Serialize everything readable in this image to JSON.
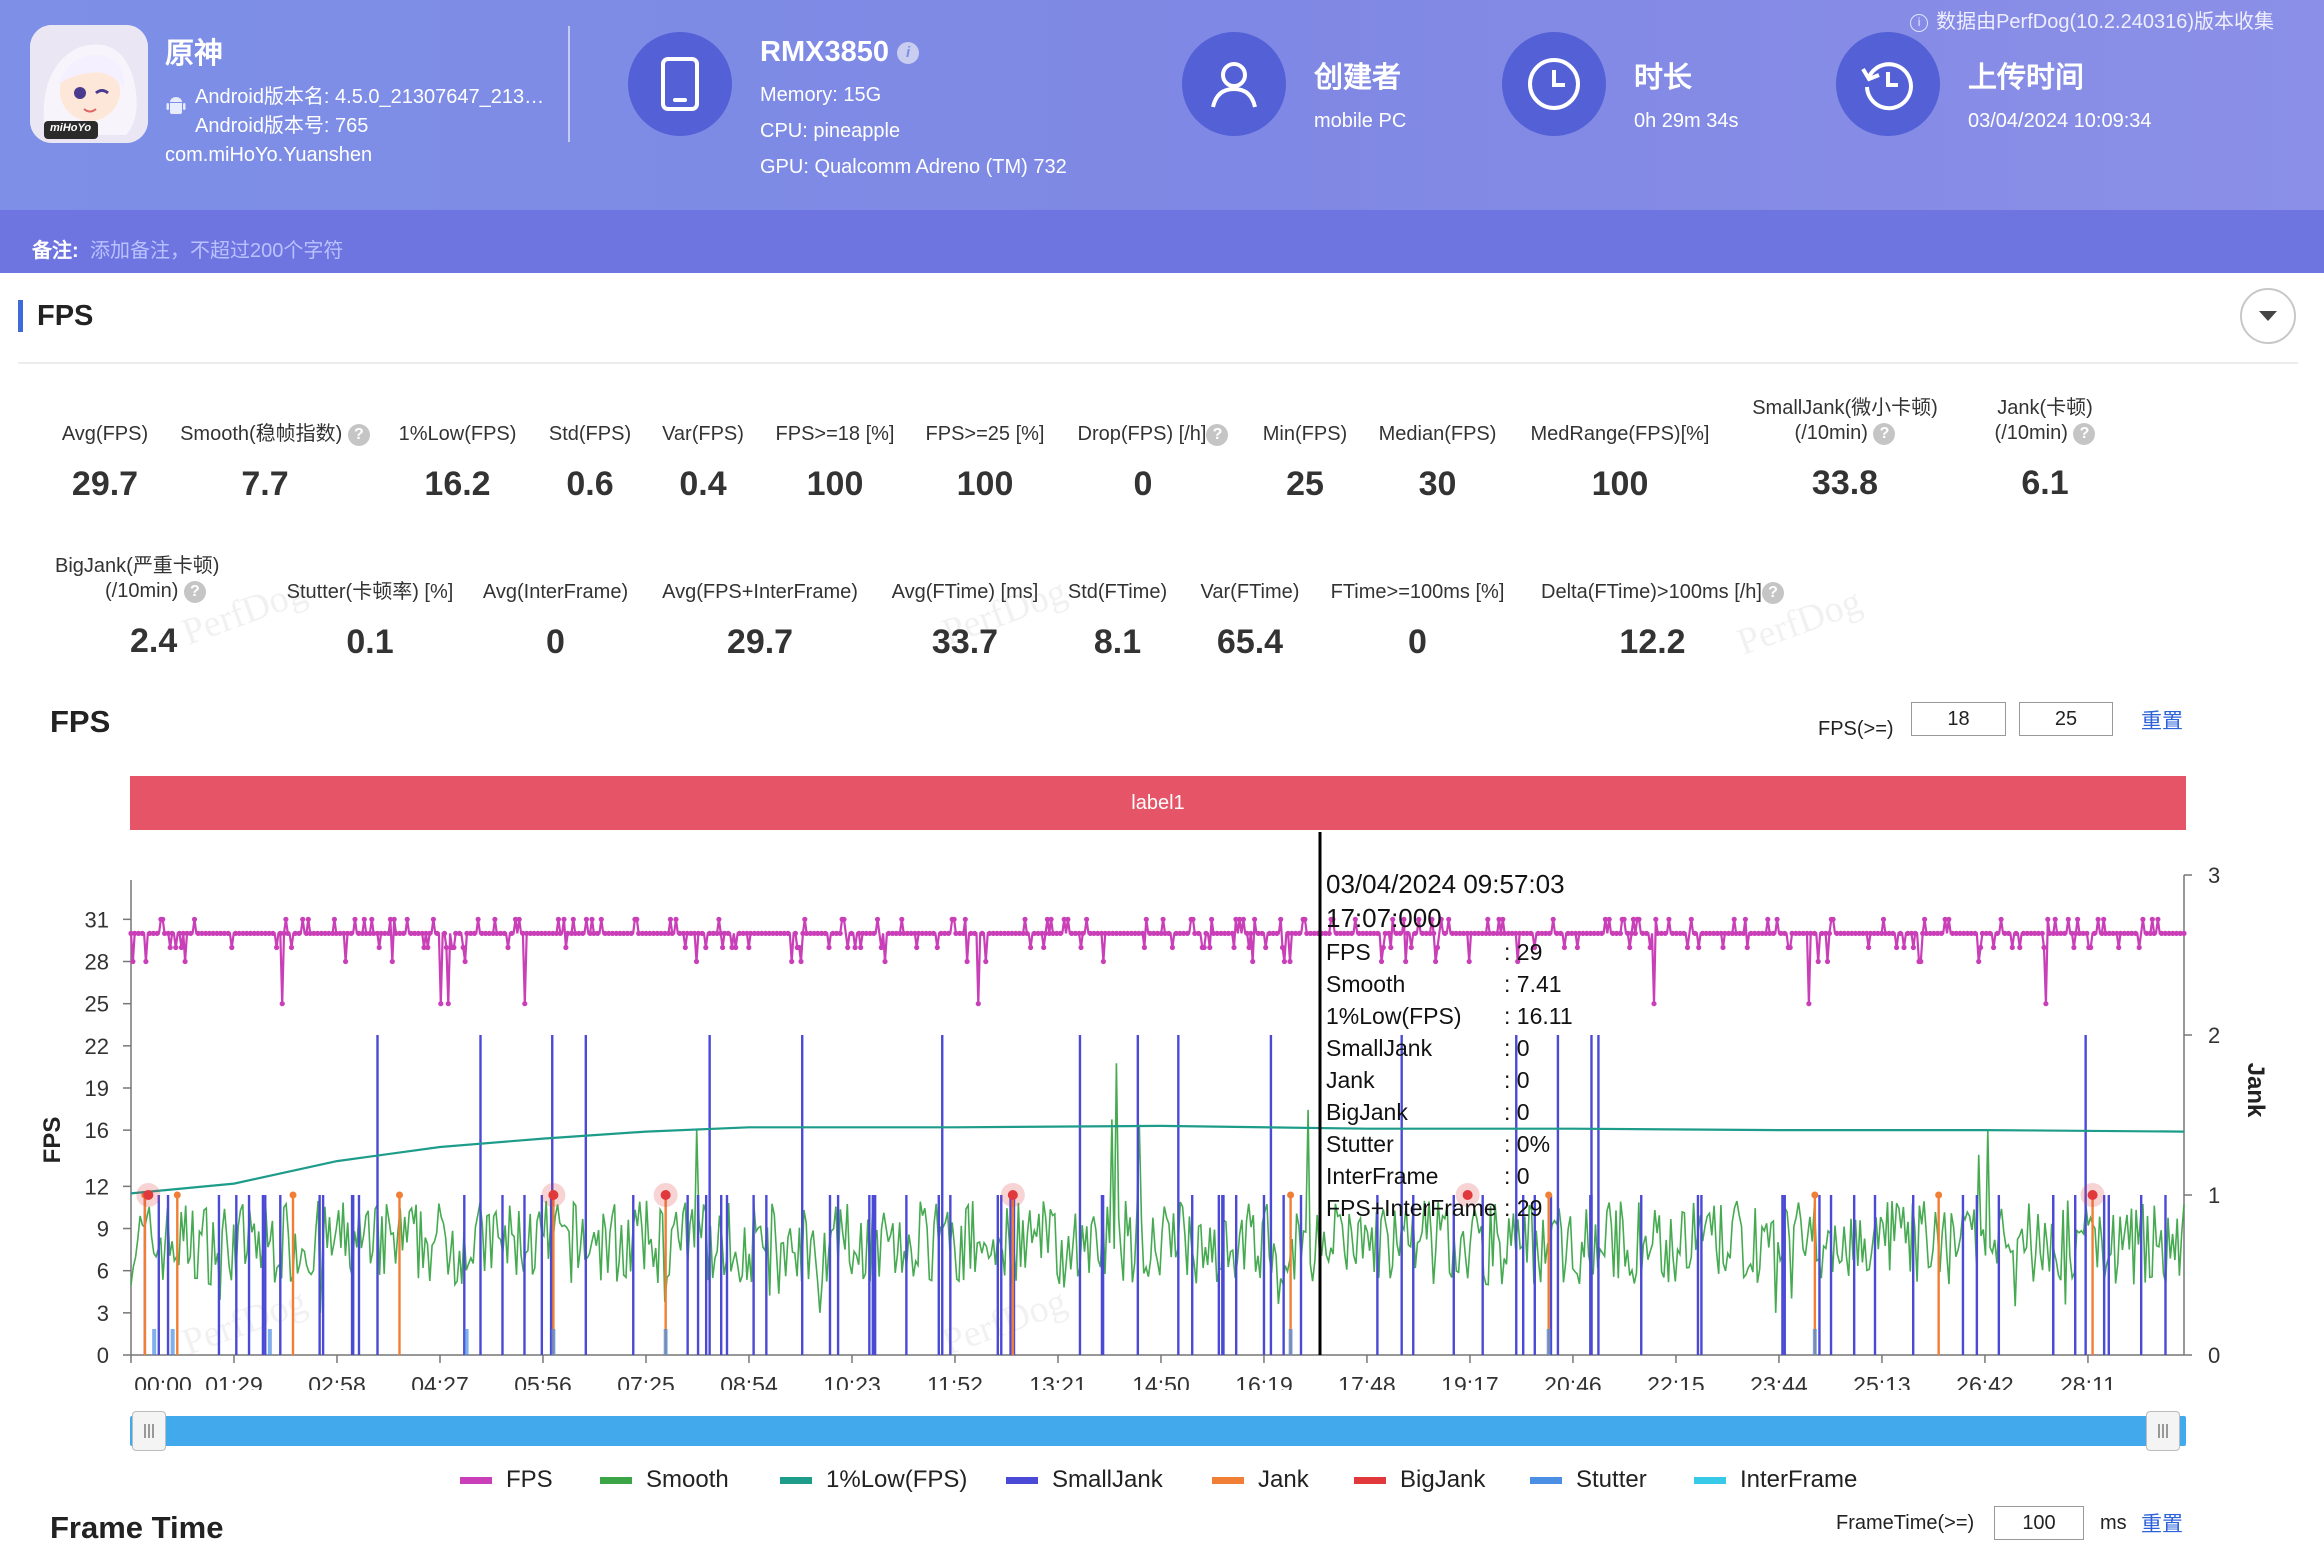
{
  "header": {
    "app_name": "原神",
    "android_version_name": "Android版本名: 4.5.0_21307647_213…",
    "android_version_code": "Android版本号: 765",
    "package": "com.miHoYo.Yuanshen",
    "device_name": "RMX3850",
    "memory": "Memory: 15G",
    "cpu": "CPU: pineapple",
    "gpu": "GPU: Qualcomm Adreno (TM) 732",
    "creator_label": "创建者",
    "creator_value": "mobile PC",
    "duration_label": "时长",
    "duration_value": "0h 29m 34s",
    "upload_label": "上传时间",
    "upload_value": "03/04/2024 10:09:34",
    "data_source": "数据由PerfDog(10.2.240316)版本收集",
    "note_label": "备注:",
    "note_placeholder": "添加备注，不超过200个字符",
    "app_icon_logo_text": "miHoYo"
  },
  "section_title": "FPS",
  "metrics_row1": [
    {
      "label": "Avg(FPS)",
      "value": "29.7"
    },
    {
      "label": "Smooth(稳帧指数)",
      "value": "7.7"
    },
    {
      "label": "1%Low(FPS)",
      "value": "16.2"
    },
    {
      "label": "Std(FPS)",
      "value": "0.6"
    },
    {
      "label": "Var(FPS)",
      "value": "0.4"
    },
    {
      "label": "FPS>=18 [%]",
      "value": "100"
    },
    {
      "label": "FPS>=25 [%]",
      "value": "100"
    },
    {
      "label": "Drop(FPS) [/h]",
      "value": "0"
    },
    {
      "label": "Min(FPS)",
      "value": "25"
    },
    {
      "label": "Median(FPS)",
      "value": "30"
    },
    {
      "label": "MedRange(FPS)[%]",
      "value": "100"
    },
    {
      "label": "SmallJank(微小卡顿)",
      "label2": "(/10min)",
      "value": "33.8"
    },
    {
      "label": "Jank(卡顿)",
      "label2": "(/10min)",
      "value": "6.1"
    }
  ],
  "metrics_row2": [
    {
      "label": "BigJank(严重卡顿)",
      "label2": "(/10min)",
      "value": "2.4"
    },
    {
      "label": "Stutter(卡顿率) [%]",
      "value": "0.1"
    },
    {
      "label": "Avg(InterFrame)",
      "value": "0"
    },
    {
      "label": "Avg(FPS+InterFrame)",
      "value": "29.7"
    },
    {
      "label": "Avg(FTime) [ms]",
      "value": "33.7"
    },
    {
      "label": "Std(FTime)",
      "value": "8.1"
    },
    {
      "label": "Var(FTime)",
      "value": "65.4"
    },
    {
      "label": "FTime>=100ms [%]",
      "value": "0"
    },
    {
      "label": "Delta(FTime)>100ms [/h]",
      "value": "12.2"
    }
  ],
  "watermark_text": "PerfDog",
  "fps_chart": {
    "title": "FPS",
    "threshold_label": "FPS(>=)",
    "threshold_low": "18",
    "threshold_high": "25",
    "reset_label": "重置",
    "label_band": "label1"
  },
  "frame_time": {
    "title": "Frame Time",
    "threshold_label": "FrameTime(>=)",
    "threshold_value": "100",
    "unit": "ms",
    "reset_label": "重置"
  },
  "chart_data": {
    "type": "line",
    "ylabel": "FPS",
    "y2label": "Jank",
    "ylim": [
      0,
      31
    ],
    "y_ticks": [
      "0",
      "3",
      "6",
      "9",
      "12",
      "16",
      "19",
      "22",
      "25",
      "28",
      "31"
    ],
    "y2lim": [
      0,
      3
    ],
    "y2_ticks": [
      "0",
      "1",
      "2",
      "3"
    ],
    "x_ticks": [
      "00:00",
      "01:29",
      "02:58",
      "04:27",
      "05:56",
      "07:25",
      "08:54",
      "10:23",
      "11:52",
      "13:21",
      "14:50",
      "16:19",
      "17:48",
      "19:17",
      "20:46",
      "22:15",
      "23:44",
      "25:13",
      "26:42",
      "28:11"
    ],
    "grid": false,
    "legend_position": "bottom",
    "series": [
      {
        "name": "FPS",
        "color": "#c93fb7",
        "typical": 30,
        "range": [
          25,
          31
        ]
      },
      {
        "name": "Smooth",
        "color": "#3ca548",
        "typical": 8,
        "range": [
          3,
          21
        ]
      },
      {
        "name": "1%Low(FPS)",
        "color": "#1d9c8a",
        "points": [
          [
            0,
            11.5
          ],
          [
            89,
            12.2
          ],
          [
            178,
            13.8
          ],
          [
            267,
            14.8
          ],
          [
            356,
            15.4
          ],
          [
            445,
            15.9
          ],
          [
            534,
            16.2
          ],
          [
            712,
            16.2
          ],
          [
            890,
            16.3
          ],
          [
            1068,
            16.1
          ],
          [
            1246,
            16.1
          ],
          [
            1424,
            16.0
          ],
          [
            1602,
            16.0
          ],
          [
            1774,
            15.9
          ]
        ]
      },
      {
        "name": "SmallJank",
        "color": "#4a4ad6"
      },
      {
        "name": "Jank",
        "color": "#f07f35"
      },
      {
        "name": "BigJank",
        "color": "#e0383b"
      },
      {
        "name": "Stutter",
        "color": "#4a8fe4"
      },
      {
        "name": "InterFrame",
        "color": "#38c8e8"
      }
    ],
    "tooltip": {
      "datetime": "03/04/2024 09:57:03",
      "time": "17:07:000",
      "rows": [
        {
          "k": "FPS",
          "v": ": 29"
        },
        {
          "k": "Smooth",
          "v": ": 7.41"
        },
        {
          "k": "1%Low(FPS)",
          "v": ": 16.11"
        },
        {
          "k": "SmallJank",
          "v": ": 0"
        },
        {
          "k": "Jank",
          "v": ": 0"
        },
        {
          "k": "BigJank",
          "v": ": 0"
        },
        {
          "k": "Stutter",
          "v": ": 0%"
        },
        {
          "k": "InterFrame",
          "v": ": 0"
        },
        {
          "k": "FPS+InterFrame",
          "v": ": 29"
        }
      ]
    }
  }
}
